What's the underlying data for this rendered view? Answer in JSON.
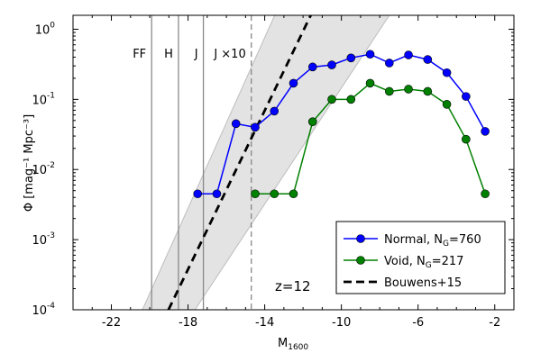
{
  "chart_data": {
    "type": "line",
    "xlabel": "M",
    "xlabel_sub": "1600",
    "ylabel": "Φ [mag⁻¹ Mpc⁻³]",
    "xlim": [
      -24,
      -1
    ],
    "ylim": [
      0.0001,
      1.58
    ],
    "yscale": "log",
    "xticks": [
      -22,
      -18,
      -14,
      -10,
      -6,
      -2
    ],
    "xtick_labels": [
      "-22",
      "-18",
      "-14",
      "-10",
      "-6",
      "-2"
    ],
    "yticks": [
      0.0001,
      0.001,
      0.01,
      0.1,
      1
    ],
    "ytick_bases": [
      "10",
      "10",
      "10",
      "10",
      "10"
    ],
    "ytick_exps": [
      "-4",
      "-3",
      "-2",
      "-1",
      "0"
    ],
    "annotation": "z=12",
    "legend_position": "lower-right",
    "vlines": [
      {
        "label": "FF",
        "x": -19.9,
        "style": "solid",
        "color": "#888888"
      },
      {
        "label": "H",
        "x": -18.5,
        "style": "solid",
        "color": "#888888"
      },
      {
        "label": "J",
        "x": -17.2,
        "style": "solid",
        "color": "#888888"
      },
      {
        "label": "J ×10",
        "x": -14.7,
        "style": "dashed",
        "color": "#888888"
      }
    ],
    "series": [
      {
        "name": "Normal, N",
        "name_sub": "G",
        "name_suffix": "=760",
        "color": "#0000ff",
        "marker": "circle",
        "x": [
          -17.5,
          -16.5,
          -15.5,
          -14.5,
          -13.5,
          -12.5,
          -11.5,
          -10.5,
          -9.5,
          -8.5,
          -7.5,
          -6.5,
          -5.5,
          -4.5,
          -3.5,
          -2.5
        ],
        "y": [
          0.0045,
          0.0045,
          0.045,
          0.04,
          0.068,
          0.17,
          0.29,
          0.31,
          0.39,
          0.44,
          0.33,
          0.43,
          0.37,
          0.24,
          0.11,
          0.035
        ]
      },
      {
        "name": "Void, N",
        "name_sub": "G",
        "name_suffix": "=217",
        "color": "#008000",
        "marker": "circle",
        "x": [
          -14.5,
          -13.5,
          -12.5,
          -11.5,
          -10.5,
          -9.5,
          -8.5,
          -7.5,
          -6.5,
          -5.5,
          -4.5,
          -3.5,
          -2.5
        ],
        "y": [
          0.0045,
          0.0045,
          0.0045,
          0.048,
          0.1,
          0.1,
          0.17,
          0.13,
          0.14,
          0.13,
          0.085,
          0.027,
          0.0045
        ]
      },
      {
        "name": "Bouwens+15",
        "color": "#000000",
        "style": "dashed",
        "x": [
          -19.02,
          -11.6
        ],
        "y": [
          0.0001,
          1.58
        ]
      }
    ],
    "shaded_band": {
      "color": "#e3e3e3",
      "upper": {
        "x": [
          -20.38,
          -13.48
        ],
        "y": [
          0.0001,
          1.58
        ]
      },
      "lower": {
        "x": [
          -17.64,
          -7.5
        ],
        "y": [
          0.0001,
          1.58
        ]
      }
    }
  }
}
